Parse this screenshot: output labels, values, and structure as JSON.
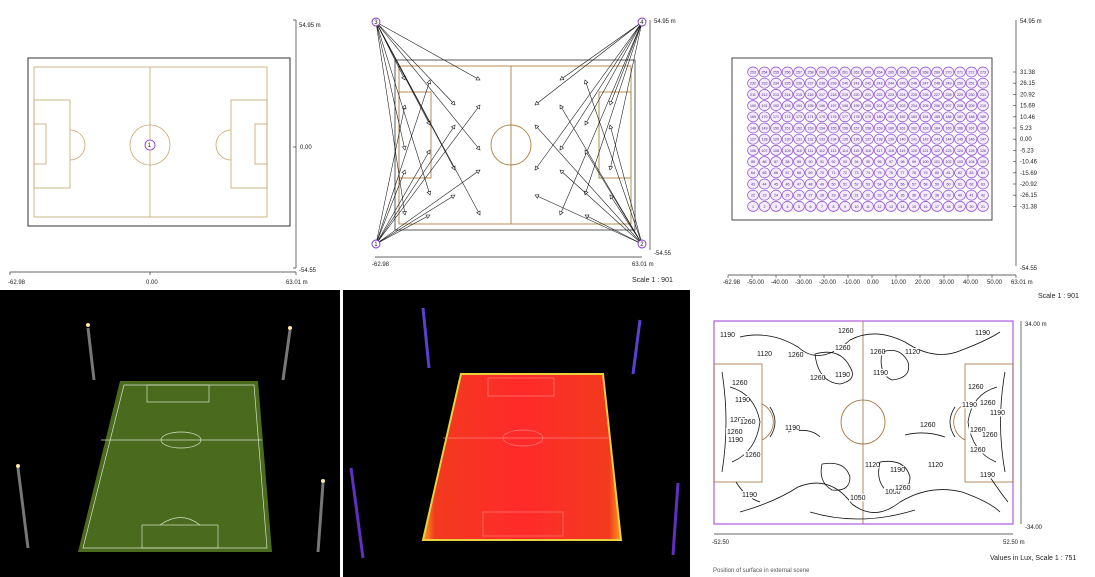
{
  "top_left": {
    "y_top": "54.95 m",
    "y_mid": "0.00",
    "y_bottom": "-54.55",
    "x_left": "-62.98",
    "x_mid": "0.00",
    "x_right": "63.01 m",
    "center_marker": "1"
  },
  "top_mid": {
    "pole_labels": [
      "3",
      "4",
      "1",
      "2"
    ],
    "y_top": "54.95 m",
    "y_bottom": "-54.55",
    "x_left": "-62.98",
    "x_right": "63.01 m",
    "scale": "Scale 1 : 901"
  },
  "top_right": {
    "y_top": "54.95 m",
    "y_bottom": "-54.55",
    "y_ticks": [
      "31.38",
      "26.15",
      "20.92",
      "15.69",
      "10.46",
      "5.23",
      "0.00",
      "-5.23",
      "-10.46",
      "-15.69",
      "-20.92",
      "-26.15",
      "-31.38"
    ],
    "x_ticks": [
      "-62.98",
      "-50.00",
      "-40.00",
      "-30.00",
      "-20.00",
      "-10.00",
      "0.00",
      "10.00",
      "20.00",
      "30.00",
      "40.00",
      "50.00",
      "63.01 m"
    ],
    "grid_cols": 21,
    "grid_rows": 13,
    "scale": "Scale 1 : 901"
  },
  "bottom_right": {
    "y_top": "34.00 m",
    "y_bottom": "-34.00",
    "x_left": "-52.50",
    "x_right": "52.50 m",
    "caption": "Values in Lux, Scale 1 : 751",
    "cutoff_text": "Position of surface in external scene",
    "iso_labels": [
      "1190",
      "1120",
      "1260",
      "1190",
      "1260",
      "1260",
      "1260",
      "1120",
      "1190",
      "1190",
      "1260",
      "1260",
      "1260",
      "1190",
      "1260",
      "1260",
      "1260",
      "1190",
      "1260",
      "1190",
      "1190",
      "1260",
      "1260",
      "1190",
      "1260",
      "1260",
      "1260",
      "1120",
      "1190",
      "1120",
      "1050",
      "1050",
      "1190",
      "1260",
      "1190"
    ]
  },
  "colors": {
    "pitch_line": "#c7a56b",
    "marker": "#7b32c8",
    "grid_circle": "#8d4fd6",
    "field_green": "#4a6b1e",
    "heat_red": "#f02020",
    "border_purple": "#b05ae0"
  }
}
